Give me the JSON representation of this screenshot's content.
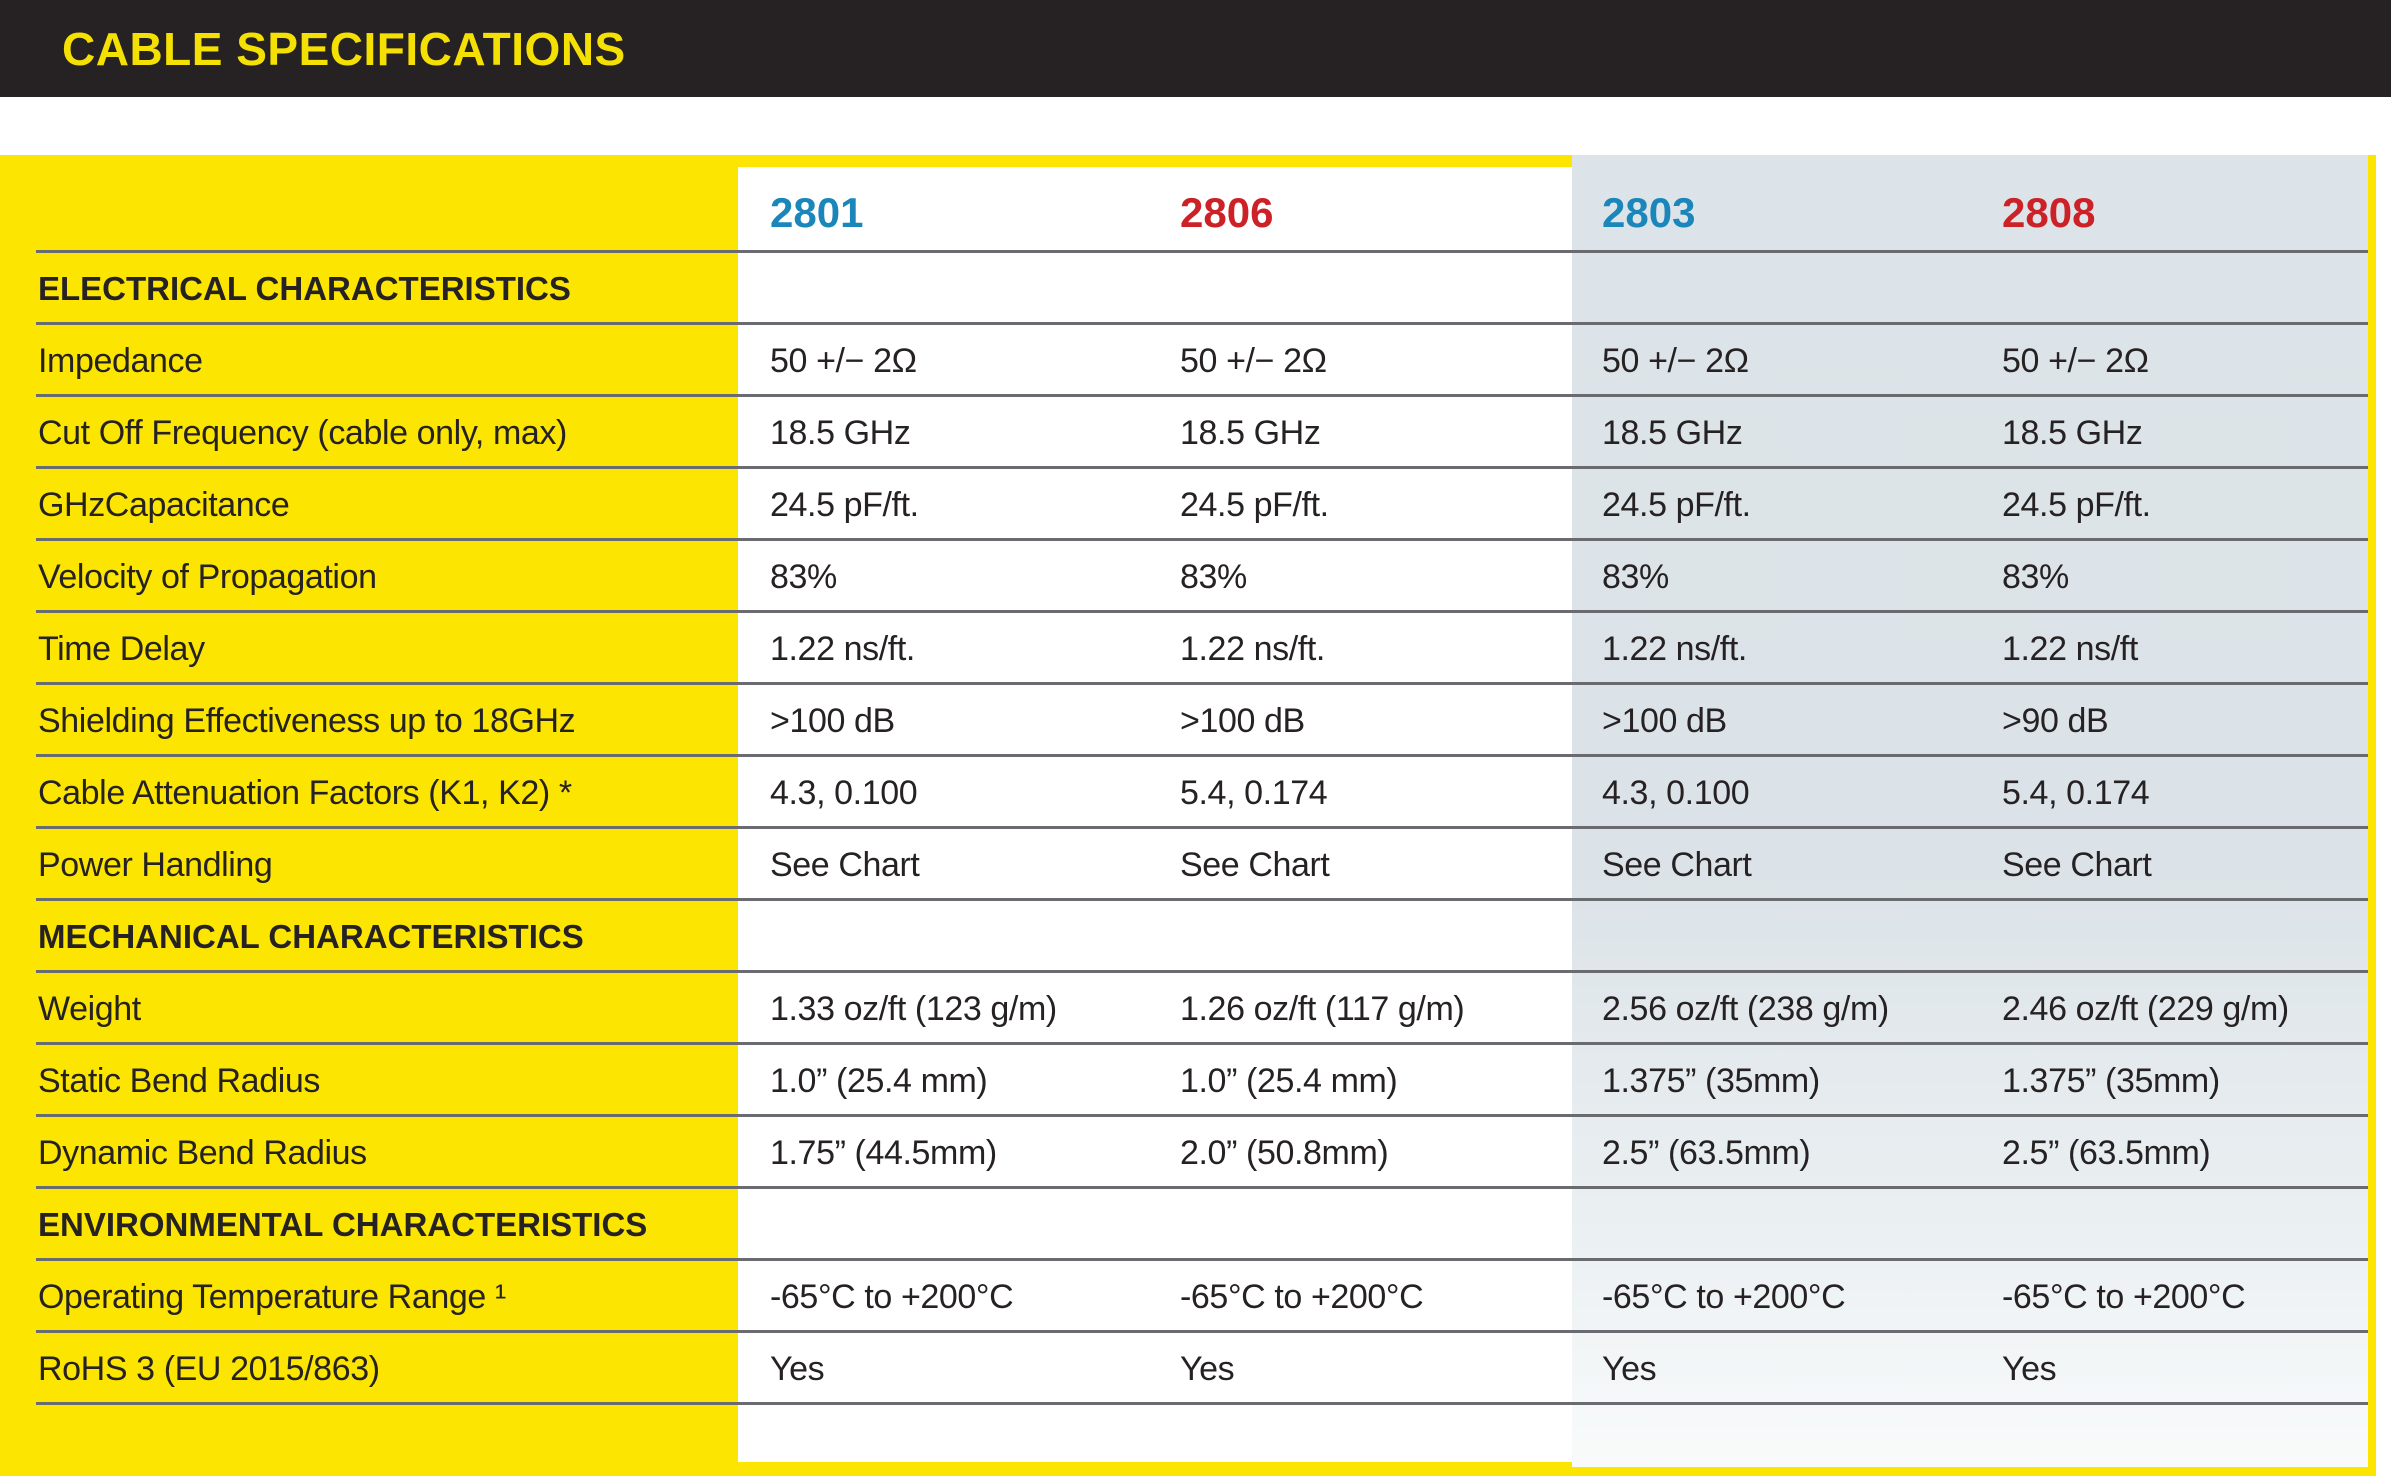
{
  "title_bar": {
    "label": "CABLE SPECIFICATIONS"
  },
  "colors": {
    "bar_background": "#262223",
    "title_yellow": "#f5e003",
    "table_yellow": "#fce500",
    "model_blue": "#1a86ba",
    "model_red": "#cb2127",
    "gray_card": "#dde4e9",
    "divider_gray": "#6a6b6e",
    "text_dark": "#262223"
  },
  "table": {
    "columns": [
      {
        "id": "2801",
        "color": "#1a86ba"
      },
      {
        "id": "2806",
        "color": "#cb2127"
      },
      {
        "id": "2803",
        "color": "#1a86ba"
      },
      {
        "id": "2808",
        "color": "#cb2127"
      }
    ],
    "rows": [
      {
        "type": "section",
        "label": "ELECTRICAL CHARACTERISTICS"
      },
      {
        "type": "data",
        "label": "Impedance",
        "v": [
          "50 +/− 2Ω",
          "50 +/− 2Ω",
          "50 +/− 2Ω",
          "50 +/− 2Ω"
        ]
      },
      {
        "type": "data",
        "label": "Cut Off Frequency (cable only, max)",
        "v": [
          "18.5 GHz",
          "18.5 GHz",
          "18.5 GHz",
          "18.5 GHz"
        ]
      },
      {
        "type": "data",
        "label": "GHzCapacitance",
        "v": [
          "24.5 pF/ft.",
          "24.5 pF/ft.",
          "24.5 pF/ft.",
          "24.5 pF/ft."
        ]
      },
      {
        "type": "data",
        "label": "Velocity of Propagation",
        "v": [
          "83%",
          "83%",
          "83%",
          "83%"
        ]
      },
      {
        "type": "data",
        "label": "Time Delay",
        "v": [
          "1.22 ns/ft.",
          "1.22 ns/ft.",
          "1.22 ns/ft.",
          "1.22 ns/ft"
        ]
      },
      {
        "type": "data",
        "label": "Shielding Effectiveness up to 18GHz",
        "v": [
          ">100 dB",
          ">100 dB",
          ">100 dB",
          ">90 dB"
        ]
      },
      {
        "type": "data",
        "label": "Cable Attenuation Factors (K1, K2) *",
        "v": [
          "4.3, 0.100",
          "5.4, 0.174",
          "4.3, 0.100",
          "5.4, 0.174"
        ]
      },
      {
        "type": "data",
        "label": "Power Handling",
        "v": [
          "See Chart",
          "See Chart",
          "See Chart",
          "See Chart"
        ]
      },
      {
        "type": "section",
        "label": "MECHANICAL CHARACTERISTICS"
      },
      {
        "type": "data",
        "label": "Weight",
        "v": [
          "1.33 oz/ft (123 g/m)",
          "1.26 oz/ft (117 g/m)",
          "2.56 oz/ft (238 g/m)",
          "2.46 oz/ft (229 g/m)"
        ]
      },
      {
        "type": "data",
        "label": "Static Bend Radius",
        "v": [
          "1.0” (25.4 mm)",
          "1.0” (25.4 mm)",
          "1.375” (35mm)",
          "1.375” (35mm)"
        ]
      },
      {
        "type": "data",
        "label": "Dynamic Bend Radius",
        "v": [
          "1.75” (44.5mm)",
          "2.0” (50.8mm)",
          "2.5” (63.5mm)",
          "2.5” (63.5mm)"
        ]
      },
      {
        "type": "section",
        "label": "ENVIRONMENTAL CHARACTERISTICS"
      },
      {
        "type": "data",
        "label": "Operating Temperature Range ¹",
        "v": [
          "-65°C to +200°C",
          "-65°C to +200°C",
          "-65°C to +200°C",
          "-65°C to +200°C"
        ]
      },
      {
        "type": "data",
        "label": "RoHS 3 (EU 2015/863)",
        "v": [
          "Yes",
          "Yes",
          "Yes",
          "Yes"
        ]
      }
    ]
  }
}
